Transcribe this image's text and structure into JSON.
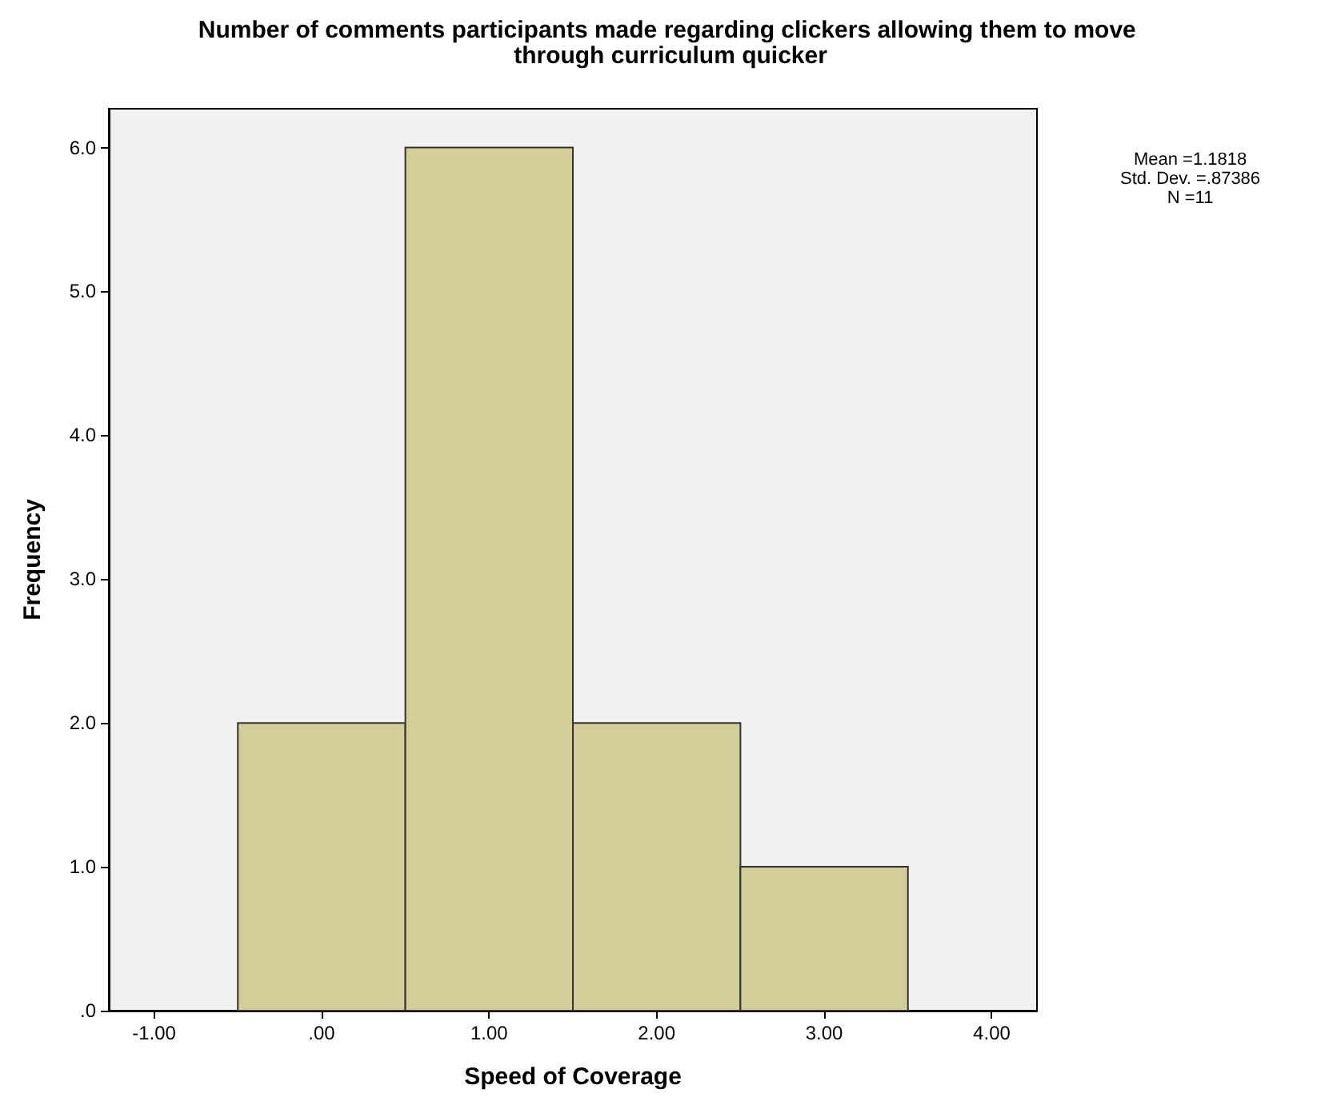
{
  "chart_data": {
    "type": "histogram",
    "title": "Number of comments participants made regarding clickers allowing them to move through curriculum quicker",
    "xlabel": "Speed of Coverage",
    "ylabel": "Frequency",
    "bins": [
      -0.5,
      0.5,
      1.5,
      2.5,
      3.5
    ],
    "values": [
      2,
      6,
      2,
      1
    ],
    "color": "#d3ce98",
    "xlim": [
      -1.27,
      4.27
    ],
    "xticks": [
      {
        "value": -1,
        "label": "-1.00"
      },
      {
        "value": 0,
        "label": ".00"
      },
      {
        "value": 1,
        "label": "1.00"
      },
      {
        "value": 2,
        "label": "2.00"
      },
      {
        "value": 3,
        "label": "3.00"
      },
      {
        "value": 4,
        "label": "4.00"
      }
    ],
    "ylim": [
      0,
      6.27
    ],
    "yticks": [
      {
        "value": 0,
        "label": ".0"
      },
      {
        "value": 1,
        "label": "1.0"
      },
      {
        "value": 2,
        "label": "2.0"
      },
      {
        "value": 3,
        "label": "3.0"
      },
      {
        "value": 4,
        "label": "4.0"
      },
      {
        "value": 5,
        "label": "5.0"
      },
      {
        "value": 6,
        "label": "6.0"
      }
    ],
    "annotations": [
      "Mean =1.1818",
      "Std. Dev. =.87386",
      "N =11"
    ],
    "grid": false
  }
}
